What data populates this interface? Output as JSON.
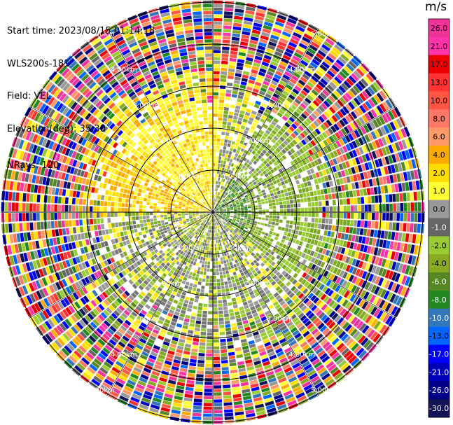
{
  "info": {
    "start_time": "Start time: 2023/08/15 01:14:18",
    "instrument": "WLS200s-181",
    "field": "Field: VEL",
    "elevation": "Elevation(deg): 35.30",
    "nrays": "NRays: 120"
  },
  "colorbar": {
    "unit": "m/s",
    "ticks": [
      "26.0",
      "21.0",
      "17.0",
      "13.0",
      "10.0",
      "8.0",
      "6.0",
      "4.0",
      "2.0",
      "1.0",
      "0.0",
      "-1.0",
      "-2.0",
      "-4.0",
      "-6.0",
      "-8.0",
      "-10.0",
      "-13.0",
      "-17.0",
      "-21.0",
      "-26.0",
      "-30.0"
    ],
    "colors": [
      "#ee3399",
      "#ff33aa",
      "#ee0000",
      "#ff3333",
      "#ff5544",
      "#ff7766",
      "#ff9966",
      "#ffaa00",
      "#ffdd00",
      "#ffff33",
      "#999999",
      "#666666",
      "#99cc33",
      "#88aa22",
      "#558822",
      "#228822",
      "#3377bb",
      "#0066ff",
      "#0000ff",
      "#0000bb",
      "#000088",
      "#111155"
    ]
  },
  "range_rings": {
    "labels": [
      "1.00km",
      "2.00km",
      "3.00km",
      "4.00km",
      "5.00km"
    ]
  },
  "chart_data": {
    "type": "heatmap",
    "projection": "polar (PPI)",
    "field": "VEL",
    "units": "m/s",
    "n_rays": 120,
    "elevation_deg": 35.3,
    "range_rings_km": [
      1,
      2,
      3,
      4,
      5
    ],
    "colorbar_range": [
      -30.0,
      26.0
    ]
  }
}
